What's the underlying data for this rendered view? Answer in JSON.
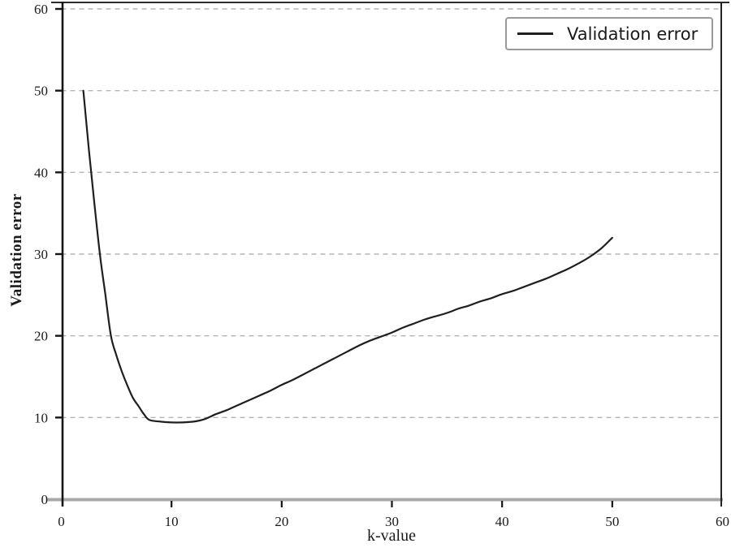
{
  "chart_data": {
    "type": "line",
    "title": "",
    "xlabel": "k-value",
    "ylabel": "Validation error",
    "xlim": [
      0,
      60
    ],
    "ylim": [
      0,
      60
    ],
    "xticks": [
      0,
      10,
      20,
      30,
      40,
      50,
      60
    ],
    "yticks": [
      0,
      10,
      20,
      30,
      40,
      50,
      60
    ],
    "grid": "horizontal-dashed",
    "legend": {
      "position": "top-right",
      "entries": [
        {
          "label": "Validation error",
          "color": "#1f1f1f"
        }
      ]
    },
    "series": [
      {
        "name": "Validation error",
        "x": [
          2,
          2.5,
          3,
          3.5,
          4,
          4.5,
          5,
          5.5,
          6,
          6.5,
          7,
          7.5,
          8,
          9,
          10,
          11,
          12,
          13,
          14,
          15,
          16,
          17,
          18,
          19,
          20,
          21,
          22,
          23,
          24,
          25,
          26,
          27,
          28,
          29,
          30,
          31,
          32,
          33,
          34,
          35,
          36,
          37,
          38,
          39,
          40,
          41,
          42,
          43,
          44,
          45,
          46,
          47,
          48,
          49,
          50
        ],
        "y": [
          50,
          42.8,
          36.2,
          30,
          25,
          20,
          17.6,
          15.6,
          13.9,
          12.4,
          11.4,
          10.4,
          9.7,
          9.5,
          9.4,
          9.4,
          9.5,
          9.8,
          10.4,
          10.9,
          11.5,
          12.1,
          12.7,
          13.3,
          14,
          14.6,
          15.3,
          16,
          16.7,
          17.4,
          18.1,
          18.8,
          19.4,
          19.9,
          20.4,
          21,
          21.5,
          22,
          22.4,
          22.8,
          23.3,
          23.7,
          24.2,
          24.6,
          25.1,
          25.5,
          26,
          26.5,
          27,
          27.6,
          28.2,
          28.9,
          29.7,
          30.7,
          32
        ]
      }
    ],
    "colors": {
      "curve": "#1f1f1f",
      "grid": "#b5b5b5",
      "axis_dark": "#151515",
      "axis_bottom": "#a8a8a8",
      "legend_border": "#9a9a9a",
      "text": "#1a1a1a",
      "background": "#ffffff"
    }
  }
}
